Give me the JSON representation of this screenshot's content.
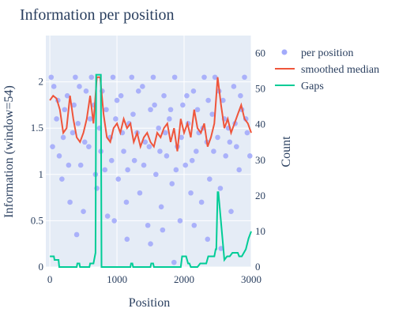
{
  "chart_data": {
    "type": "scatter",
    "title": "Information per position",
    "xlabel": "Position",
    "ylabel": "Information (window=54)",
    "y2label": "Count",
    "xlim": [
      -60,
      3000
    ],
    "ylim": [
      0,
      2.5
    ],
    "y2lim": [
      0,
      65
    ],
    "x_ticks": [
      0,
      1000,
      2000,
      3000
    ],
    "x_tick_labels": [
      "0",
      "1000",
      "2000",
      "3000"
    ],
    "y_ticks": [
      0,
      0.5,
      1,
      1.5,
      2
    ],
    "y_tick_labels": [
      "0",
      "0.5",
      "1",
      "1.5",
      "2"
    ],
    "y2_ticks": [
      0,
      10,
      20,
      30,
      40,
      50,
      60
    ],
    "y2_tick_labels": [
      "0",
      "10",
      "20",
      "30",
      "40",
      "50",
      "60"
    ],
    "legend_placement": "top-right, outside plot",
    "grid": true,
    "colors": {
      "points": "#a3abfb",
      "median": "#ef553b",
      "gaps": "#00cc96",
      "plot_bg": "#e5ecf6"
    },
    "series": [
      {
        "name": "per position",
        "kind": "markers",
        "points": [
          [
            20,
            2.05
          ],
          [
            60,
            1.95
          ],
          [
            100,
            1.6
          ],
          [
            140,
            1.2
          ],
          [
            180,
            0.95
          ],
          [
            220,
            1.7
          ],
          [
            260,
            1.85
          ],
          [
            300,
            0.7
          ],
          [
            340,
            1.45
          ],
          [
            380,
            2.05
          ],
          [
            420,
            1.55
          ],
          [
            460,
            1.1
          ],
          [
            500,
            0.6
          ],
          [
            540,
            1.9
          ],
          [
            580,
            1.3
          ],
          [
            620,
            2.05
          ],
          [
            660,
            1.75
          ],
          [
            700,
            0.85
          ],
          [
            740,
            1.5
          ],
          [
            780,
            1.9
          ],
          [
            820,
            1.05
          ],
          [
            860,
            0.55
          ],
          [
            900,
            1.4
          ],
          [
            940,
            2.05
          ],
          [
            980,
            1.6
          ],
          [
            1020,
            0.95
          ],
          [
            1060,
            1.85
          ],
          [
            1100,
            1.25
          ],
          [
            1140,
            0.7
          ],
          [
            1180,
            1.55
          ],
          [
            1220,
            2.05
          ],
          [
            1260,
            1.15
          ],
          [
            1300,
            1.45
          ],
          [
            1340,
            0.8
          ],
          [
            1380,
            1.95
          ],
          [
            1420,
            1.35
          ],
          [
            1460,
            0.45
          ],
          [
            1500,
            1.7
          ],
          [
            1540,
            2.05
          ],
          [
            1580,
            1.0
          ],
          [
            1620,
            1.5
          ],
          [
            1660,
            0.65
          ],
          [
            1700,
            1.85
          ],
          [
            1740,
            1.2
          ],
          [
            1780,
            1.6
          ],
          [
            1820,
            0.9
          ],
          [
            1860,
            2.05
          ],
          [
            1900,
            1.3
          ],
          [
            1940,
            0.5
          ],
          [
            1980,
            1.75
          ],
          [
            2020,
            1.1
          ],
          [
            2060,
            1.55
          ],
          [
            2100,
            0.8
          ],
          [
            2140,
            1.9
          ],
          [
            2180,
            1.25
          ],
          [
            2220,
            1.45
          ],
          [
            2260,
            0.7
          ],
          [
            2300,
            2.05
          ],
          [
            2340,
            1.35
          ],
          [
            2380,
            0.95
          ],
          [
            2420,
            1.65
          ],
          [
            2460,
            2.05
          ],
          [
            2500,
            1.4
          ],
          [
            2540,
            0.85
          ],
          [
            2580,
            1.8
          ],
          [
            2620,
            1.2
          ],
          [
            2660,
            1.5
          ],
          [
            2700,
            0.6
          ],
          [
            2740,
            1.95
          ],
          [
            2780,
            1.3
          ],
          [
            2820,
            1.05
          ],
          [
            2860,
            1.7
          ],
          [
            2900,
            2.05
          ],
          [
            2940,
            1.45
          ],
          [
            2980,
            1.2
          ],
          [
            40,
            1.3
          ],
          [
            120,
            1.8
          ],
          [
            200,
            1.4
          ],
          [
            280,
            1.1
          ],
          [
            360,
            1.75
          ],
          [
            440,
            1.95
          ],
          [
            520,
            1.35
          ],
          [
            600,
            1.6
          ],
          [
            680,
            1.0
          ],
          [
            760,
            1.25
          ],
          [
            840,
            1.7
          ],
          [
            920,
            1.15
          ],
          [
            1000,
            1.8
          ],
          [
            1080,
            1.45
          ],
          [
            1160,
            1.05
          ],
          [
            1240,
            1.65
          ],
          [
            1320,
            1.9
          ],
          [
            1400,
            1.1
          ],
          [
            1480,
            1.3
          ],
          [
            1560,
            1.75
          ],
          [
            1640,
            1.25
          ],
          [
            1720,
            1.45
          ],
          [
            1800,
            1.7
          ],
          [
            1880,
            1.05
          ],
          [
            1960,
            1.4
          ],
          [
            2040,
            1.85
          ],
          [
            2120,
            1.15
          ],
          [
            2200,
            1.7
          ],
          [
            2280,
            1.5
          ],
          [
            2360,
            1.8
          ],
          [
            2440,
            1.25
          ],
          [
            2520,
            1.9
          ],
          [
            2600,
            1.6
          ],
          [
            2680,
            1.35
          ],
          [
            2760,
            1.55
          ],
          [
            2840,
            1.85
          ],
          [
            2920,
            1.6
          ],
          [
            400,
            0.35
          ],
          [
            1150,
            0.3
          ],
          [
            1500,
            0.25
          ],
          [
            1850,
            0.05
          ],
          [
            2350,
            0.3
          ],
          [
            2550,
            0.2
          ],
          [
            2150,
            0.45
          ],
          [
            960,
            0.5
          ],
          [
            1680,
            0.4
          ]
        ]
      },
      {
        "name": "smoothed median",
        "kind": "line",
        "x": [
          0,
          50,
          100,
          150,
          200,
          250,
          300,
          350,
          400,
          450,
          500,
          550,
          600,
          650,
          700,
          750,
          800,
          850,
          900,
          950,
          1000,
          1050,
          1100,
          1150,
          1200,
          1250,
          1300,
          1350,
          1400,
          1450,
          1500,
          1550,
          1600,
          1650,
          1700,
          1750,
          1800,
          1850,
          1900,
          1950,
          2000,
          2050,
          2100,
          2150,
          2200,
          2250,
          2300,
          2350,
          2400,
          2450,
          2500,
          2550,
          2600,
          2650,
          2700,
          2750,
          2800,
          2850,
          2900,
          2950,
          3000
        ],
        "y": [
          1.8,
          1.85,
          1.82,
          1.7,
          1.45,
          1.5,
          1.85,
          1.6,
          1.4,
          1.35,
          1.45,
          1.6,
          1.85,
          1.55,
          2.05,
          2.05,
          1.65,
          1.4,
          1.35,
          1.5,
          1.55,
          1.45,
          1.6,
          1.5,
          1.55,
          1.35,
          1.45,
          1.3,
          1.4,
          1.45,
          1.35,
          1.3,
          1.45,
          1.4,
          1.5,
          1.55,
          1.35,
          1.5,
          1.25,
          1.6,
          1.45,
          1.55,
          1.4,
          1.7,
          1.5,
          1.45,
          1.55,
          1.3,
          1.4,
          1.55,
          2.05,
          1.75,
          1.5,
          1.6,
          1.45,
          1.55,
          1.65,
          1.75,
          1.6,
          1.55,
          1.45
        ]
      },
      {
        "name": "Gaps",
        "kind": "line",
        "x": [
          0,
          60,
          70,
          130,
          140,
          400,
          410,
          440,
          450,
          590,
          600,
          650,
          680,
          690,
          760,
          770,
          1200,
          1210,
          1230,
          1240,
          1500,
          1510,
          1540,
          1550,
          1950,
          1970,
          2030,
          2060,
          2080,
          2100,
          2200,
          2240,
          2330,
          2360,
          2450,
          2470,
          2480,
          2500,
          2510,
          2600,
          2640,
          2680,
          2720,
          2800,
          2820,
          2860,
          2920,
          2960,
          2980,
          3000
        ],
        "y": [
          3,
          3,
          2,
          2,
          0,
          0,
          1,
          1,
          0,
          0,
          1,
          1,
          4,
          54,
          54,
          0,
          0,
          1,
          1,
          0,
          0,
          1,
          1,
          0,
          0,
          3,
          3,
          1,
          1,
          0,
          0,
          1,
          1,
          3,
          3,
          5,
          5,
          21,
          21,
          2,
          3,
          3,
          4,
          4,
          3,
          3,
          5,
          8,
          9,
          10
        ]
      }
    ]
  }
}
